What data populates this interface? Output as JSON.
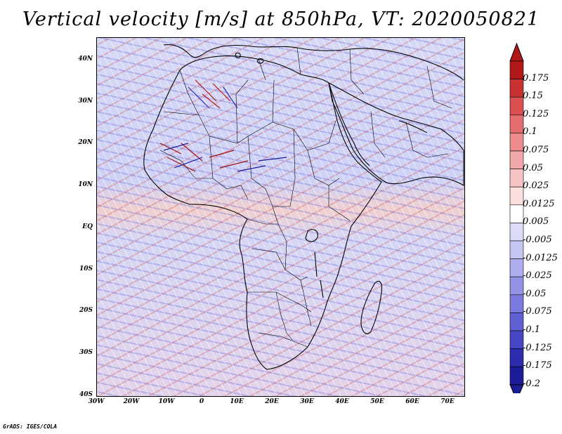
{
  "title": "Vertical velocity [m/s] at 850hPa, VT: 2020050821",
  "credit": "GrADS: IGES/COLA",
  "lat_labels": [
    "40N",
    "30N",
    "20N",
    "10N",
    "EQ",
    "10S",
    "20S",
    "30S",
    "40S"
  ],
  "lon_labels": [
    "30W",
    "20W",
    "10W",
    "0",
    "10E",
    "20E",
    "30E",
    "40E",
    "50E",
    "60E",
    "70E"
  ],
  "colorbar": {
    "levels": [
      "0.175",
      "0.15",
      "0.125",
      "0.1",
      "0.075",
      "0.05",
      "0.025",
      "0.0125",
      "0.005",
      "-0.005",
      "-0.0125",
      "-0.025",
      "-0.05",
      "-0.075",
      "-0.1",
      "-0.125",
      "-0.175",
      "-0.2"
    ],
    "colors": [
      "#b01818",
      "#c83232",
      "#d95050",
      "#e46e6e",
      "#ec8c8c",
      "#f2a8a8",
      "#f7c4c4",
      "#fbdede",
      "#ffffff",
      "#dcdcf8",
      "#c6c6f3",
      "#aeaeee",
      "#9494e6",
      "#7a7ade",
      "#6060d2",
      "#4646c4",
      "#2c2cae",
      "#1c1c96"
    ]
  }
}
